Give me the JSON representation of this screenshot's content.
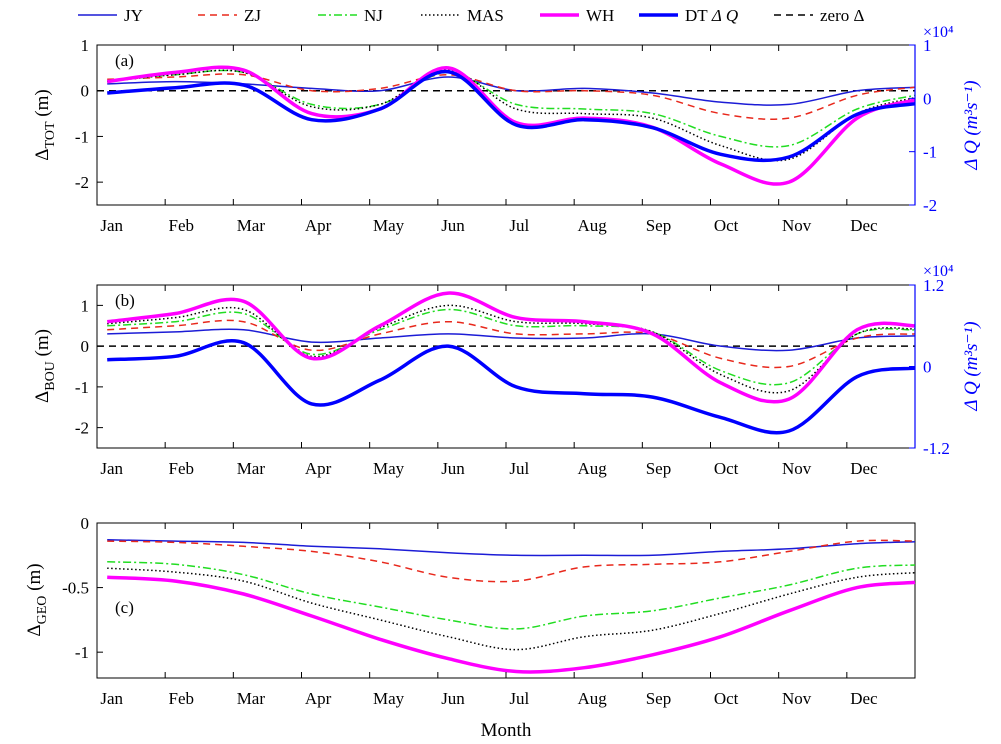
{
  "legend": [
    {
      "label": "JY",
      "color": "#1c1cd6",
      "style": "solid",
      "width": 1.5
    },
    {
      "label": "ZJ",
      "color": "#e8281c",
      "style": "dashed",
      "width": 1.5
    },
    {
      "label": "NJ",
      "color": "#22dd22",
      "style": "dashdot",
      "width": 1.5
    },
    {
      "label": "MAS",
      "color": "#000000",
      "style": "dotted",
      "width": 1.5
    },
    {
      "label": "WH",
      "color": "#ff00ff",
      "style": "solid",
      "width": 3.5
    },
    {
      "label": "DT",
      "color": "#0000ff",
      "style": "solid",
      "width": 3.5
    },
    {
      "label": "zero Δ",
      "color": "#000000",
      "style": "dashed",
      "width": 1.5
    }
  ],
  "legend_extra": {
    "dq_label": "Δ Q"
  },
  "x_axis": {
    "label": "Month",
    "ticks": [
      "Jan",
      "Feb",
      "Mar",
      "Apr",
      "May",
      "Jun",
      "Jul",
      "Aug",
      "Sep",
      "Oct",
      "Nov",
      "Dec"
    ]
  },
  "panels": [
    {
      "panel_label": "(a)",
      "y_label": "Δ",
      "y_label_sub": "TOT",
      "y_label_unit": " (m)",
      "y_ticks": [
        "1",
        "0",
        "-1",
        "-2"
      ],
      "r_ticks": [
        "1",
        "0",
        "-1",
        "-2"
      ],
      "r_exponent": "×10⁴",
      "r_label": "Δ Q (m³s⁻¹)"
    },
    {
      "panel_label": "(b)",
      "y_label": "Δ",
      "y_label_sub": "BOU",
      "y_label_unit": " (m)",
      "y_ticks": [
        "1",
        "0",
        "-1",
        "-2"
      ],
      "r_ticks": [
        "1.2",
        "0",
        "-1.2"
      ],
      "r_exponent": "×10⁴",
      "r_label": "Δ Q (m³s⁻¹)"
    },
    {
      "panel_label": "(c)",
      "y_label": "Δ",
      "y_label_sub": "GEO",
      "y_label_unit": " (m)",
      "y_ticks": [
        "0",
        "-0.5",
        "-1"
      ]
    }
  ],
  "chart_data": [
    {
      "type": "line",
      "panel": "(a)",
      "x": [
        "Jan",
        "Feb",
        "Mar",
        "Apr",
        "May",
        "Jun",
        "Jul",
        "Aug",
        "Sep",
        "Oct",
        "Nov",
        "Dec"
      ],
      "ylabel": "ΔTOT (m)",
      "ylim": [
        -2.5,
        1.0
      ],
      "y2label": "ΔQ (m³s⁻¹) ×10⁴",
      "y2lim": [
        -2,
        1
      ],
      "series": [
        {
          "name": "JY",
          "values": [
            0.15,
            0.2,
            0.15,
            0.05,
            0.0,
            0.3,
            0.0,
            0.05,
            -0.05,
            -0.25,
            -0.3,
            0.0
          ]
        },
        {
          "name": "ZJ",
          "values": [
            0.25,
            0.3,
            0.35,
            0.0,
            0.05,
            0.35,
            0.0,
            0.0,
            -0.1,
            -0.5,
            -0.6,
            -0.1
          ]
        },
        {
          "name": "NJ",
          "values": [
            0.2,
            0.35,
            0.4,
            -0.3,
            -0.3,
            0.4,
            -0.3,
            -0.4,
            -0.5,
            -1.0,
            -1.2,
            -0.4
          ]
        },
        {
          "name": "MAS",
          "values": [
            0.2,
            0.35,
            0.4,
            -0.35,
            -0.3,
            0.45,
            -0.4,
            -0.5,
            -0.6,
            -1.2,
            -1.5,
            -0.5
          ]
        },
        {
          "name": "WH",
          "values": [
            0.2,
            0.4,
            0.45,
            -0.5,
            -0.4,
            0.5,
            -0.7,
            -0.6,
            -0.8,
            -1.6,
            -2.0,
            -0.6
          ]
        },
        {
          "name": "DT",
          "axis": "right",
          "values": [
            0.1,
            0.2,
            0.25,
            -0.4,
            -0.2,
            0.5,
            -0.5,
            -0.4,
            -0.55,
            -1.05,
            -1.1,
            -0.3
          ]
        }
      ],
      "reference_line": {
        "name": "zero Δ",
        "y": 0
      }
    },
    {
      "type": "line",
      "panel": "(b)",
      "x": [
        "Jan",
        "Feb",
        "Mar",
        "Apr",
        "May",
        "Jun",
        "Jul",
        "Aug",
        "Sep",
        "Oct",
        "Nov",
        "Dec"
      ],
      "ylabel": "ΔBOU (m)",
      "ylim": [
        -2.5,
        1.5
      ],
      "y2label": "ΔQ (m³s⁻¹) ×10⁴",
      "y2lim": [
        -1.2,
        1.2
      ],
      "series": [
        {
          "name": "JY",
          "values": [
            0.3,
            0.35,
            0.4,
            0.1,
            0.2,
            0.3,
            0.2,
            0.2,
            0.3,
            0.0,
            -0.1,
            0.2
          ]
        },
        {
          "name": "ZJ",
          "values": [
            0.4,
            0.5,
            0.6,
            -0.1,
            0.3,
            0.6,
            0.3,
            0.3,
            0.3,
            -0.3,
            -0.5,
            0.2
          ]
        },
        {
          "name": "NJ",
          "values": [
            0.5,
            0.6,
            0.8,
            -0.2,
            0.4,
            0.9,
            0.5,
            0.5,
            0.35,
            -0.6,
            -0.9,
            0.3
          ]
        },
        {
          "name": "MAS",
          "values": [
            0.55,
            0.7,
            0.9,
            -0.25,
            0.45,
            1.0,
            0.6,
            0.55,
            0.35,
            -0.7,
            -1.1,
            0.3
          ]
        },
        {
          "name": "WH",
          "values": [
            0.6,
            0.8,
            1.1,
            -0.3,
            0.5,
            1.3,
            0.7,
            0.6,
            0.3,
            -0.9,
            -1.3,
            0.4
          ]
        },
        {
          "name": "DT",
          "axis": "right",
          "values": [
            0.1,
            0.15,
            0.35,
            -0.55,
            -0.2,
            0.3,
            -0.3,
            -0.4,
            -0.45,
            -0.75,
            -0.95,
            -0.15
          ]
        }
      ],
      "reference_line": {
        "name": "zero Δ",
        "y": 0
      }
    },
    {
      "type": "line",
      "panel": "(c)",
      "x": [
        "Jan",
        "Feb",
        "Mar",
        "Apr",
        "May",
        "Jun",
        "Jul",
        "Aug",
        "Sep",
        "Oct",
        "Nov",
        "Dec"
      ],
      "xlabel": "Month",
      "ylabel": "ΔGEO (m)",
      "ylim": [
        -1.2,
        0.0
      ],
      "series": [
        {
          "name": "JY",
          "values": [
            -0.13,
            -0.14,
            -0.15,
            -0.18,
            -0.2,
            -0.23,
            -0.25,
            -0.25,
            -0.25,
            -0.22,
            -0.2,
            -0.16
          ]
        },
        {
          "name": "ZJ",
          "values": [
            -0.14,
            -0.15,
            -0.18,
            -0.22,
            -0.3,
            -0.42,
            -0.45,
            -0.34,
            -0.32,
            -0.3,
            -0.22,
            -0.14
          ]
        },
        {
          "name": "NJ",
          "values": [
            -0.3,
            -0.32,
            -0.4,
            -0.55,
            -0.65,
            -0.75,
            -0.82,
            -0.72,
            -0.68,
            -0.58,
            -0.48,
            -0.35
          ]
        },
        {
          "name": "MAS",
          "values": [
            -0.35,
            -0.38,
            -0.45,
            -0.62,
            -0.75,
            -0.88,
            -0.98,
            -0.88,
            -0.83,
            -0.7,
            -0.55,
            -0.42
          ]
        },
        {
          "name": "WH",
          "values": [
            -0.42,
            -0.45,
            -0.55,
            -0.72,
            -0.9,
            -1.05,
            -1.15,
            -1.12,
            -1.02,
            -0.88,
            -0.68,
            -0.5
          ]
        }
      ]
    }
  ]
}
